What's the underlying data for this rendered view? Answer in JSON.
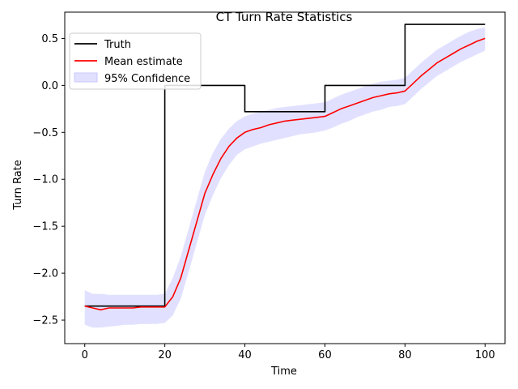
{
  "chart_data": {
    "type": "line",
    "title": "CT Turn Rate Statistics",
    "xlabel": "Time",
    "ylabel": "Turn Rate",
    "xlim": [
      -5,
      105
    ],
    "ylim": [
      -2.75,
      0.78
    ],
    "xticks": [
      0,
      20,
      40,
      60,
      80,
      100
    ],
    "xtick_labels": [
      "0",
      "20",
      "40",
      "60",
      "80",
      "100"
    ],
    "yticks": [
      0.5,
      0.0,
      -0.5,
      -1.0,
      -1.5,
      -2.0,
      -2.5
    ],
    "ytick_labels": [
      "0.5",
      "0.0",
      "−0.5",
      "−1.0",
      "−1.5",
      "−2.0",
      "−2.5"
    ],
    "grid": false,
    "legend_position": "top-left",
    "legend": [
      "Truth",
      "Mean estimate",
      "95% Confidence"
    ],
    "series": [
      {
        "name": "Truth",
        "style": "step",
        "color": "#000000",
        "x": [
          0,
          20,
          20,
          40,
          40,
          60,
          60,
          80,
          80,
          100
        ],
        "y": [
          -2.35,
          -2.35,
          0.0,
          0.0,
          -0.28,
          -0.28,
          0.0,
          0.0,
          0.65,
          0.65
        ]
      },
      {
        "name": "Mean estimate",
        "style": "line",
        "color": "#ff0000",
        "x": [
          0,
          2,
          4,
          6,
          8,
          10,
          12,
          14,
          16,
          18,
          20,
          22,
          24,
          26,
          28,
          30,
          32,
          34,
          36,
          38,
          40,
          42,
          44,
          46,
          48,
          50,
          52,
          54,
          56,
          58,
          60,
          62,
          64,
          66,
          68,
          70,
          72,
          74,
          76,
          78,
          80,
          82,
          84,
          86,
          88,
          90,
          92,
          94,
          96,
          98,
          100
        ],
        "y": [
          -2.35,
          -2.37,
          -2.39,
          -2.37,
          -2.37,
          -2.37,
          -2.37,
          -2.36,
          -2.36,
          -2.36,
          -2.36,
          -2.25,
          -2.05,
          -1.75,
          -1.45,
          -1.15,
          -0.95,
          -0.78,
          -0.65,
          -0.56,
          -0.5,
          -0.47,
          -0.45,
          -0.42,
          -0.4,
          -0.38,
          -0.37,
          -0.36,
          -0.35,
          -0.34,
          -0.33,
          -0.29,
          -0.25,
          -0.22,
          -0.19,
          -0.16,
          -0.13,
          -0.11,
          -0.09,
          -0.08,
          -0.06,
          0.02,
          0.1,
          0.17,
          0.24,
          0.29,
          0.34,
          0.39,
          0.43,
          0.47,
          0.5
        ]
      },
      {
        "name": "95% Confidence",
        "style": "band",
        "color": "#c8c8ff",
        "x": [
          0,
          2,
          4,
          6,
          8,
          10,
          12,
          14,
          16,
          18,
          20,
          22,
          24,
          26,
          28,
          30,
          32,
          34,
          36,
          38,
          40,
          42,
          44,
          46,
          48,
          50,
          52,
          54,
          56,
          58,
          60,
          62,
          64,
          66,
          68,
          70,
          72,
          74,
          76,
          78,
          80,
          82,
          84,
          86,
          88,
          90,
          92,
          94,
          96,
          98,
          100
        ],
        "upper": [
          -2.18,
          -2.22,
          -2.22,
          -2.23,
          -2.23,
          -2.23,
          -2.23,
          -2.23,
          -2.23,
          -2.23,
          -2.22,
          -2.05,
          -1.82,
          -1.52,
          -1.22,
          -0.92,
          -0.72,
          -0.57,
          -0.46,
          -0.38,
          -0.33,
          -0.3,
          -0.28,
          -0.26,
          -0.24,
          -0.23,
          -0.22,
          -0.21,
          -0.2,
          -0.19,
          -0.18,
          -0.14,
          -0.1,
          -0.07,
          -0.04,
          -0.01,
          0.02,
          0.04,
          0.05,
          0.06,
          0.08,
          0.16,
          0.24,
          0.31,
          0.38,
          0.43,
          0.48,
          0.53,
          0.57,
          0.6,
          0.62
        ],
        "lower": [
          -2.55,
          -2.58,
          -2.58,
          -2.57,
          -2.56,
          -2.55,
          -2.55,
          -2.54,
          -2.54,
          -2.54,
          -2.53,
          -2.45,
          -2.27,
          -1.98,
          -1.68,
          -1.38,
          -1.17,
          -0.99,
          -0.85,
          -0.74,
          -0.68,
          -0.65,
          -0.62,
          -0.6,
          -0.58,
          -0.56,
          -0.54,
          -0.52,
          -0.51,
          -0.5,
          -0.48,
          -0.45,
          -0.41,
          -0.38,
          -0.34,
          -0.31,
          -0.28,
          -0.26,
          -0.23,
          -0.22,
          -0.2,
          -0.12,
          -0.04,
          0.03,
          0.1,
          0.15,
          0.2,
          0.25,
          0.29,
          0.33,
          0.37
        ]
      }
    ]
  }
}
